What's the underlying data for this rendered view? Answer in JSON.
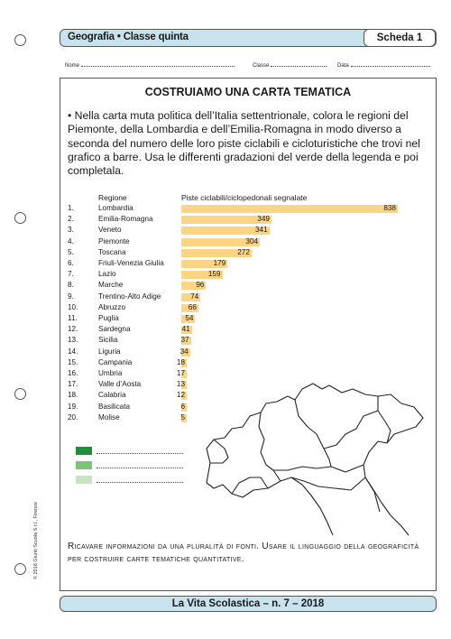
{
  "header": {
    "title": "Geografia • Classe quinta",
    "scheda": "Scheda 1"
  },
  "fields": {
    "nome": "Nome",
    "classe": "Classe",
    "data": "Data"
  },
  "main_title": "COSTRUIAMO UNA CARTA TEMATICA",
  "instructions": "• Nella carta muta politica dell’Italia settentrionale, colora le regioni del Piemonte, della Lombardia e dell’Emilia-Romagna in modo diverso a seconda del numero delle loro piste ciclabili e cicloturistiche che trovi nel grafico a barre. Usa le differenti gradazioni del verde della legenda e poi completala.",
  "chart_data": {
    "type": "bar",
    "orientation": "horizontal",
    "xlabel": "Regione",
    "ylabel": "Piste ciclabili/ciclopedonali segnalate",
    "ranks": [
      "1.",
      "2.",
      "3.",
      "4.",
      "5.",
      "6.",
      "7.",
      "8.",
      "9.",
      "10.",
      "11.",
      "12.",
      "13.",
      "14.",
      "15.",
      "16.",
      "17.",
      "18.",
      "19.",
      "20."
    ],
    "categories": [
      "Lombardia",
      "Emilia-Romagna",
      "Veneto",
      "Piemonte",
      "Toscana",
      "Friuli-Venezia Giulia",
      "Lazio",
      "Marche",
      "Trentino-Alto Adige",
      "Abruzzo",
      "Puglia",
      "Sardegna",
      "Sicilia",
      "Liguria",
      "Campania",
      "Umbria",
      "Valle d’Aosta",
      "Calabria",
      "Basilicata",
      "Molise"
    ],
    "values": [
      838,
      349,
      341,
      304,
      272,
      179,
      159,
      96,
      74,
      66,
      54,
      41,
      37,
      34,
      18,
      17,
      13,
      12,
      6,
      5
    ],
    "value_labels": [
      "838",
      "349",
      "341",
      "304",
      "272",
      "179",
      "159",
      "96",
      "74",
      "66",
      "54",
      "41",
      "37",
      "34",
      "18",
      "17",
      "13",
      "12",
      "6",
      "5"
    ],
    "bar_color": "#fcd483"
  },
  "legend": {
    "colors": [
      "#1f8f3a",
      "#7cc576",
      "#c6e5bf"
    ]
  },
  "bottom_text": "Ricavare informazioni da una pluralità di fonti. Usare il linguaggio della geograficità per costruire carte tematiche quantitative.",
  "footer": "La Vita Scolastica – n. 7 – 2018",
  "copyright": "© 2018 Giunti Scuola S.r.l., Firenze",
  "colors": {
    "header_bg": "#c9e3ee"
  }
}
